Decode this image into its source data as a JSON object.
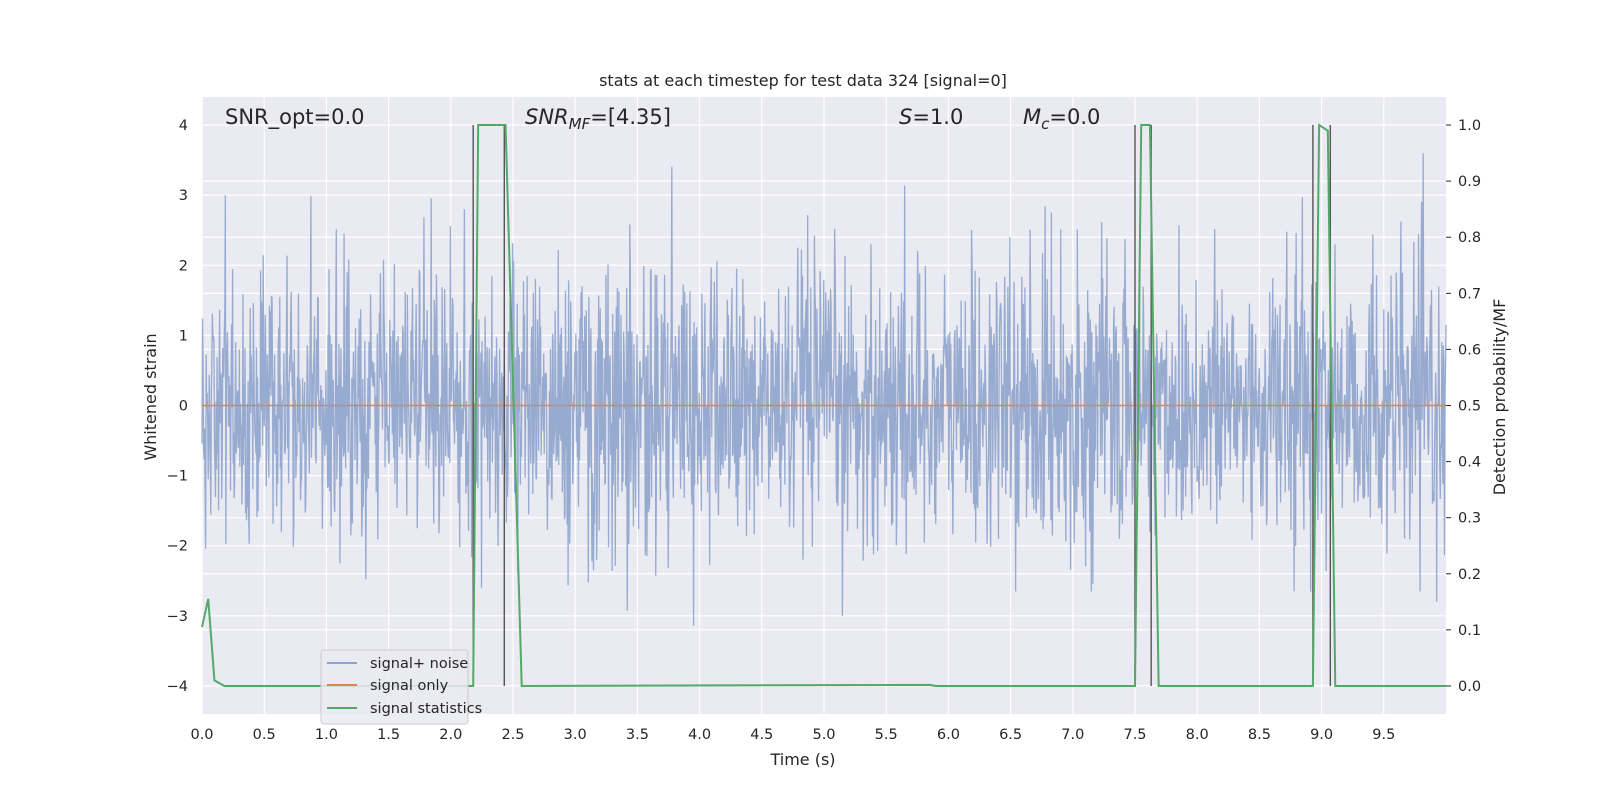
{
  "chart_data": {
    "type": "line",
    "title": "stats at each timestep for test data 324 [signal=0]",
    "xlabel": "Time (s)",
    "ylabel": "Whitened strain",
    "ylabel_right": "Detection probability/MF",
    "xlim": [
      0.0,
      10.0
    ],
    "ylim": [
      -4.4,
      4.4
    ],
    "ylim_right": [
      -0.05,
      1.05
    ],
    "x_ticks": [
      "0.0",
      "0.5",
      "1.0",
      "1.5",
      "2.0",
      "2.5",
      "3.0",
      "3.5",
      "4.0",
      "4.5",
      "5.0",
      "5.5",
      "6.0",
      "6.5",
      "7.0",
      "7.5",
      "8.0",
      "8.5",
      "9.0",
      "9.5"
    ],
    "y_ticks": [
      "−4",
      "−3",
      "−2",
      "−1",
      "0",
      "1",
      "2",
      "3",
      "4"
    ],
    "y_ticks_right": [
      "0.0",
      "0.1",
      "0.2",
      "0.3",
      "0.4",
      "0.5",
      "0.6",
      "0.7",
      "0.8",
      "0.9",
      "1.0"
    ],
    "grid": true,
    "annotations": {
      "snr_opt": "SNR_opt=0.0",
      "snr_mf_main": "SNR",
      "snr_mf_sub": "MF",
      "snr_mf_value": "=[4.35]",
      "s_main": "S",
      "s_value": "=1.0",
      "mc_main": "M",
      "mc_sub": "c",
      "mc_value": "=0.0"
    },
    "legend": {
      "placement": "lower-left",
      "entries": [
        {
          "label": "signal+ noise",
          "color": "#8ea3cc"
        },
        {
          "label": "signal only",
          "color": "#dd8452"
        },
        {
          "label": "signal statistics",
          "color": "#55a868"
        }
      ]
    },
    "series": [
      {
        "name": "signal+ noise",
        "color": "#8ea3cc",
        "description_values": {
          "noise_sigma": 1.0,
          "typical_range": [
            -3.5,
            3.6
          ]
        }
      },
      {
        "name": "signal only",
        "color": "#dd8452",
        "x": [
          0.0,
          10.0
        ],
        "y": [
          0.0,
          0.0
        ]
      },
      {
        "name": "signal statistics",
        "color": "#55a868",
        "axis": "right",
        "x": [
          0.0,
          0.05,
          0.1,
          0.18,
          2.18,
          2.22,
          2.26,
          2.44,
          2.57,
          5.85,
          5.9,
          5.95,
          7.5,
          7.55,
          7.62,
          7.69,
          8.93,
          8.98,
          9.05,
          9.11,
          10.0
        ],
        "y": [
          0.105,
          0.155,
          0.01,
          0.0,
          0.0,
          1.0,
          1.0,
          1.0,
          0.0,
          0.002,
          0.0,
          0.0,
          0.0,
          1.0,
          1.0,
          0.0,
          0.0,
          1.0,
          0.99,
          0.0,
          0.0
        ]
      }
    ],
    "vertical_markers": {
      "color": "#555555",
      "x": [
        2.18,
        2.43,
        7.5,
        7.63,
        8.93,
        9.07
      ],
      "y_range": [
        -4.0,
        4.0
      ]
    }
  }
}
